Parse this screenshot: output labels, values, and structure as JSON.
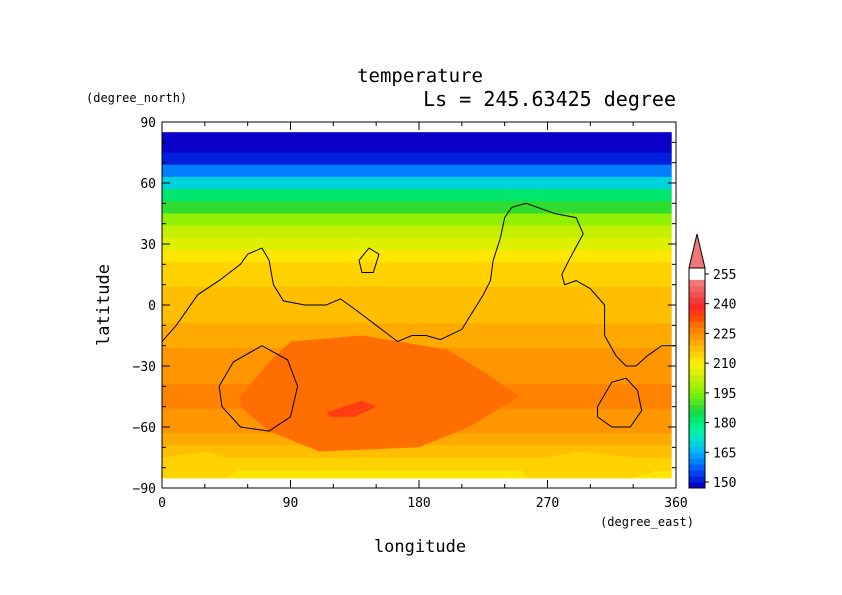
{
  "chart_data": {
    "type": "heatmap",
    "title": "temperature",
    "subtitle": "Ls = 245.63425 degree",
    "xlabel": "longitude",
    "ylabel": "latitude",
    "x_unit": "(degree_east)",
    "y_unit": "(degree_north)",
    "xlim": [
      0,
      360
    ],
    "ylim": [
      -90,
      90
    ],
    "x_ticks": [
      0,
      90,
      180,
      270,
      360
    ],
    "y_ticks": [
      90,
      60,
      30,
      0,
      -30,
      -60,
      -90
    ],
    "x_tick_labels": [
      "0",
      "90",
      "180",
      "270",
      "360"
    ],
    "y_tick_labels": [
      "90",
      "60",
      "30",
      "0",
      "−30",
      "−60",
      "−90"
    ],
    "colorbar": {
      "tick_labels": [
        "255",
        "240",
        "225",
        "210",
        "195",
        "180",
        "165",
        "150"
      ],
      "levels": [
        147,
        150,
        153,
        156,
        159,
        162,
        165,
        168,
        171,
        174,
        177,
        180,
        183,
        186,
        189,
        192,
        195,
        198,
        201,
        204,
        207,
        210,
        213,
        216,
        219,
        222,
        225,
        228,
        231,
        234,
        237,
        240,
        243,
        246,
        249,
        252,
        255,
        258
      ],
      "colors": [
        "#0a00c8",
        "#0020dc",
        "#0040f0",
        "#0060ff",
        "#0080ff",
        "#00a0ff",
        "#00bef0",
        "#00d2dc",
        "#00e6c8",
        "#00f0aa",
        "#00f08c",
        "#00e66e",
        "#10dc50",
        "#30dc30",
        "#50e620",
        "#70f010",
        "#90f000",
        "#aaf000",
        "#c4f000",
        "#dcf000",
        "#f0f000",
        "#ffe600",
        "#ffd200",
        "#ffbe00",
        "#ffaa00",
        "#ff9600",
        "#ff8200",
        "#ff6e00",
        "#ff5000",
        "#ff3c14",
        "#ff2828",
        "#f03c3c",
        "#f05050",
        "#f06464",
        "#f07878"
      ],
      "overflow_color": "#f07878"
    },
    "latitude_profile": [
      {
        "lat": 85,
        "t": 147
      },
      {
        "lat": 78,
        "t": 148
      },
      {
        "lat": 72,
        "t": 152
      },
      {
        "lat": 66,
        "t": 160
      },
      {
        "lat": 60,
        "t": 170
      },
      {
        "lat": 54,
        "t": 180
      },
      {
        "lat": 48,
        "t": 188
      },
      {
        "lat": 42,
        "t": 195
      },
      {
        "lat": 36,
        "t": 201
      },
      {
        "lat": 30,
        "t": 206
      },
      {
        "lat": 24,
        "t": 210
      },
      {
        "lat": 18,
        "t": 213
      },
      {
        "lat": 12,
        "t": 215
      },
      {
        "lat": 6,
        "t": 216
      },
      {
        "lat": 0,
        "t": 217
      },
      {
        "lat": -6,
        "t": 218
      },
      {
        "lat": -12,
        "t": 219
      },
      {
        "lat": -18,
        "t": 220
      },
      {
        "lat": -24,
        "t": 222
      },
      {
        "lat": -30,
        "t": 223
      },
      {
        "lat": -36,
        "t": 224
      },
      {
        "lat": -42,
        "t": 225
      },
      {
        "lat": -48,
        "t": 225
      },
      {
        "lat": -54,
        "t": 224
      },
      {
        "lat": -60,
        "t": 223
      },
      {
        "lat": -66,
        "t": 221
      },
      {
        "lat": -72,
        "t": 217
      },
      {
        "lat": -78,
        "t": 213
      },
      {
        "lat": -85,
        "t": 210
      }
    ],
    "warm_regions": [
      {
        "label": "south mid-latitude warm area",
        "t": 228,
        "points": [
          [
            55,
            -45
          ],
          [
            75,
            -28
          ],
          [
            90,
            -18
          ],
          [
            140,
            -15
          ],
          [
            200,
            -22
          ],
          [
            230,
            -35
          ],
          [
            250,
            -45
          ],
          [
            215,
            -60
          ],
          [
            180,
            -70
          ],
          [
            110,
            -72
          ],
          [
            75,
            -62
          ],
          [
            55,
            -50
          ]
        ]
      },
      {
        "label": "south mid-latitude warm core",
        "t": 234,
        "points": [
          [
            115,
            -53
          ],
          [
            140,
            -47
          ],
          [
            150,
            -50
          ],
          [
            135,
            -55
          ],
          [
            118,
            -55
          ]
        ]
      }
    ],
    "cool_regions": [
      {
        "label": "south polar cool patch west",
        "t": 214,
        "points": [
          [
            0,
            -75
          ],
          [
            30,
            -72
          ],
          [
            60,
            -78
          ],
          [
            45,
            -85
          ],
          [
            0,
            -85
          ]
        ]
      },
      {
        "label": "south polar cool patch east",
        "t": 214,
        "points": [
          [
            250,
            -78
          ],
          [
            290,
            -72
          ],
          [
            330,
            -75
          ],
          [
            345,
            -82
          ],
          [
            330,
            -85
          ],
          [
            255,
            -85
          ]
        ]
      }
    ],
    "topography_contours": [
      [
        [
          0,
          -18
        ],
        [
          10,
          -10
        ],
        [
          25,
          5
        ],
        [
          40,
          12
        ],
        [
          55,
          20
        ],
        [
          60,
          25
        ],
        [
          70,
          28
        ],
        [
          75,
          22
        ],
        [
          78,
          10
        ],
        [
          85,
          2
        ],
        [
          100,
          0
        ],
        [
          115,
          0
        ],
        [
          125,
          3
        ],
        [
          135,
          -2
        ],
        [
          150,
          -10
        ],
        [
          165,
          -18
        ],
        [
          175,
          -15
        ],
        [
          185,
          -15
        ],
        [
          195,
          -17
        ],
        [
          210,
          -12
        ],
        [
          225,
          5
        ],
        [
          230,
          12
        ],
        [
          232,
          22
        ],
        [
          237,
          33
        ],
        [
          240,
          43
        ],
        [
          245,
          48
        ],
        [
          255,
          50
        ],
        [
          275,
          45
        ],
        [
          290,
          43
        ],
        [
          295,
          35
        ],
        [
          285,
          22
        ],
        [
          280,
          15
        ],
        [
          282,
          10
        ],
        [
          290,
          12
        ],
        [
          300,
          8
        ],
        [
          310,
          0
        ],
        [
          310,
          -15
        ],
        [
          318,
          -25
        ],
        [
          325,
          -30
        ],
        [
          332,
          -30
        ],
        [
          340,
          -25
        ],
        [
          350,
          -20
        ],
        [
          360,
          -20
        ]
      ],
      [
        [
          138,
          22
        ],
        [
          145,
          28
        ],
        [
          152,
          25
        ],
        [
          148,
          16
        ],
        [
          140,
          16
        ],
        [
          138,
          22
        ]
      ],
      [
        [
          40,
          -40
        ],
        [
          50,
          -28
        ],
        [
          70,
          -20
        ],
        [
          88,
          -27
        ],
        [
          95,
          -40
        ],
        [
          90,
          -55
        ],
        [
          75,
          -62
        ],
        [
          55,
          -60
        ],
        [
          42,
          -50
        ],
        [
          40,
          -40
        ]
      ],
      [
        [
          305,
          -50
        ],
        [
          315,
          -38
        ],
        [
          325,
          -36
        ],
        [
          333,
          -42
        ],
        [
          336,
          -52
        ],
        [
          328,
          -60
        ],
        [
          315,
          -60
        ],
        [
          305,
          -55
        ],
        [
          305,
          -50
        ]
      ]
    ]
  }
}
